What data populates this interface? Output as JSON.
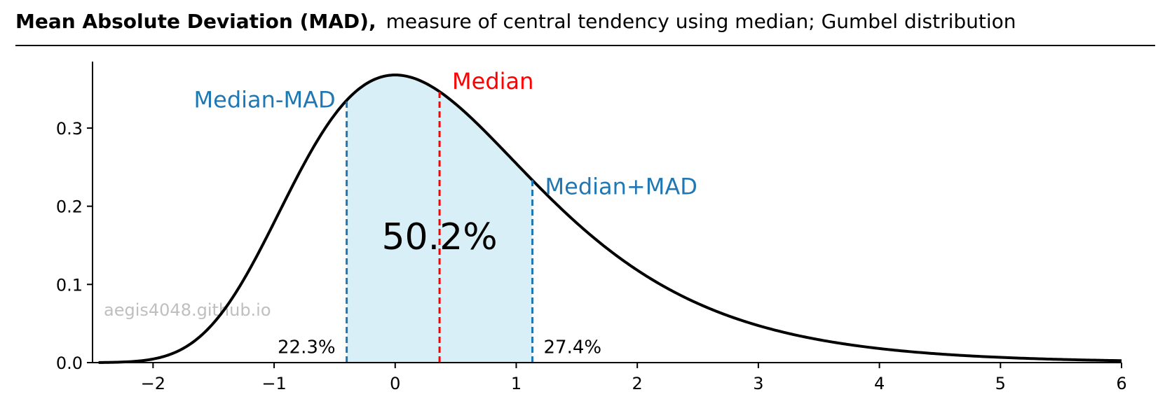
{
  "header": {
    "title": "Mean Absolute Deviation (MAD),",
    "subtitle": "measure of central tendency using median; Gumbel distribution"
  },
  "watermark": "aegis4048.github.io",
  "chart_data": {
    "type": "area",
    "distribution": "Gumbel",
    "loc": 0,
    "scale": 1,
    "xlim": [
      -2.5,
      6
    ],
    "ylim": [
      0,
      0.385
    ],
    "x_ticks": [
      -2,
      -1,
      0,
      1,
      2,
      3,
      4,
      5,
      6
    ],
    "x_tick_labels": [
      "−2",
      "−1",
      "0",
      "1",
      "2",
      "3",
      "4",
      "5",
      "6"
    ],
    "y_ticks": [
      0.0,
      0.1,
      0.2,
      0.3
    ],
    "y_tick_labels": [
      "0.0",
      "0.1",
      "0.2",
      "0.3"
    ],
    "median": 0.3665,
    "mad": 0.767,
    "lines": [
      {
        "label": "Median-MAD",
        "x": -0.4005,
        "color": "#1f77b4"
      },
      {
        "label": "Median",
        "x": 0.3665,
        "color": "#ff0000"
      },
      {
        "label": "Median+MAD",
        "x": 1.1335,
        "color": "#1f77b4"
      }
    ],
    "shaded_region": {
      "from": -0.4005,
      "to": 1.1335,
      "color": "#d8eff7",
      "label": "50.2%"
    },
    "tail_labels": {
      "left": "22.3%",
      "right": "27.4%"
    },
    "curve_color": "#000000",
    "grid": false
  }
}
